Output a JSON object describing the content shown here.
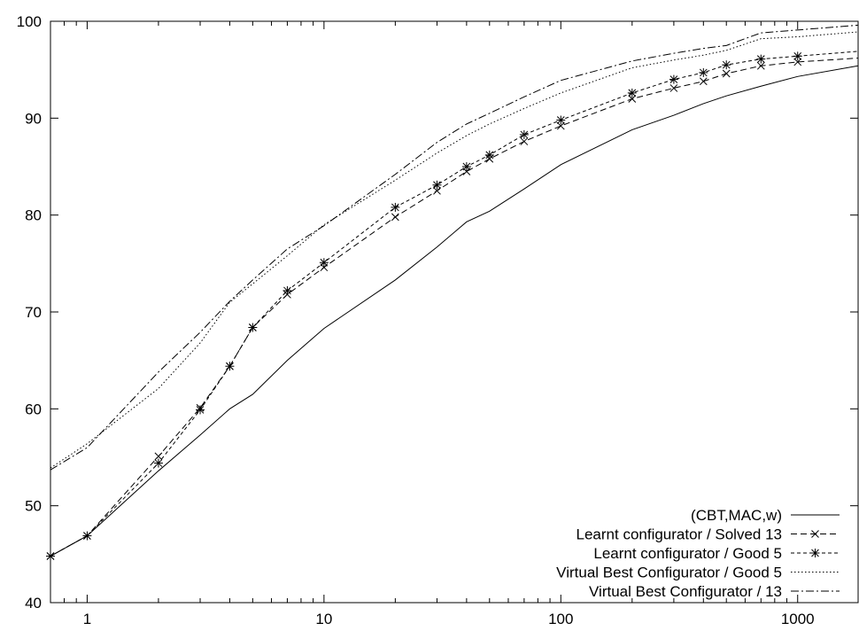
{
  "chart_data": {
    "type": "line",
    "title": "",
    "xlabel": "",
    "ylabel": "",
    "x_scale": "log",
    "xlim": [
      0.7,
      1800
    ],
    "ylim": [
      40,
      100
    ],
    "x_ticks": [
      1,
      10,
      100,
      1000
    ],
    "x_tick_labels": [
      "1",
      "10",
      "100",
      "1000"
    ],
    "y_ticks": [
      40,
      50,
      60,
      70,
      80,
      90,
      100
    ],
    "y_tick_labels": [
      "40",
      "50",
      "60",
      "70",
      "80",
      "90",
      "100"
    ],
    "grid": false,
    "legend_position": "bottom-right",
    "series": [
      {
        "name": "(CBT,MAC,w)",
        "style": "solid",
        "marker": "none",
        "x": [
          0.7,
          1,
          2,
          3,
          4,
          5,
          7,
          10,
          20,
          30,
          40,
          50,
          70,
          100,
          200,
          300,
          400,
          500,
          700,
          1000,
          1800
        ],
        "y": [
          44.8,
          46.9,
          53.6,
          57.3,
          60.0,
          61.5,
          65.0,
          68.3,
          73.3,
          76.7,
          79.3,
          80.4,
          82.7,
          85.2,
          88.8,
          90.3,
          91.5,
          92.3,
          93.3,
          94.3,
          95.4
        ]
      },
      {
        "name": "Learnt configurator / Solved 13",
        "style": "dashed",
        "marker": "x",
        "x": [
          0.7,
          1,
          2,
          3,
          4,
          5,
          7,
          10,
          20,
          30,
          40,
          50,
          70,
          100,
          200,
          300,
          400,
          500,
          700,
          1000,
          1800
        ],
        "y": [
          44.8,
          46.9,
          55.1,
          60.1,
          64.4,
          68.4,
          71.8,
          74.6,
          79.8,
          82.5,
          84.5,
          85.8,
          87.6,
          89.2,
          92.0,
          93.1,
          93.8,
          94.6,
          95.4,
          95.8,
          96.2
        ]
      },
      {
        "name": "Learnt configurator / Good 5",
        "style": "dotted-dashed",
        "marker": "star",
        "x": [
          0.7,
          1,
          2,
          3,
          4,
          5,
          7,
          10,
          20,
          30,
          40,
          50,
          70,
          100,
          200,
          300,
          400,
          500,
          700,
          1000,
          1800
        ],
        "y": [
          44.8,
          46.9,
          54.4,
          59.9,
          64.4,
          68.4,
          72.2,
          75.1,
          80.8,
          83.1,
          85.0,
          86.2,
          88.3,
          89.8,
          92.6,
          94.0,
          94.7,
          95.5,
          96.1,
          96.4,
          96.9
        ]
      },
      {
        "name": "Virtual Best Configurator / Good 5",
        "style": "dotted",
        "marker": "none",
        "x": [
          0.7,
          1,
          2,
          3,
          4,
          5,
          7,
          10,
          20,
          30,
          40,
          50,
          70,
          100,
          200,
          300,
          400,
          500,
          700,
          1000,
          1800
        ],
        "y": [
          53.9,
          56.4,
          62.1,
          66.8,
          71.0,
          72.9,
          75.8,
          79.0,
          83.6,
          86.4,
          88.2,
          89.4,
          91.0,
          92.6,
          95.2,
          96.0,
          96.5,
          97.0,
          98.2,
          98.4,
          98.9
        ]
      },
      {
        "name": "Virtual Best Configurator / 13",
        "style": "dash-dot",
        "marker": "none",
        "x": [
          0.7,
          1,
          2,
          3,
          4,
          5,
          7,
          10,
          20,
          30,
          40,
          50,
          70,
          100,
          200,
          300,
          400,
          500,
          700,
          1000,
          1800
        ],
        "y": [
          53.7,
          56.0,
          63.8,
          67.9,
          71.1,
          73.3,
          76.5,
          78.9,
          84.2,
          87.5,
          89.4,
          90.5,
          92.2,
          93.9,
          95.9,
          96.7,
          97.2,
          97.5,
          98.8,
          99.1,
          99.6
        ]
      }
    ]
  }
}
